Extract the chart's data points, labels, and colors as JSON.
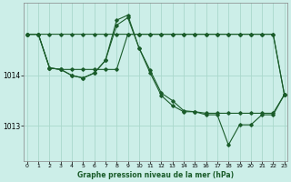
{
  "title": "Graphe pression niveau de la mer (hPa)",
  "bg_color": "#cceee8",
  "grid_color": "#aad8cc",
  "line_color": "#1a5c2a",
  "xlim_min": -0.3,
  "xlim_max": 23.3,
  "ylim_min": 1012.3,
  "ylim_max": 1015.45,
  "yticks": [
    1013,
    1014
  ],
  "xticks": [
    0,
    1,
    2,
    3,
    4,
    5,
    6,
    7,
    8,
    9,
    10,
    11,
    12,
    13,
    14,
    15,
    16,
    17,
    18,
    19,
    20,
    21,
    22,
    23
  ],
  "series": [
    {
      "x": [
        0,
        1,
        2,
        3,
        4,
        5,
        6,
        7,
        8,
        9,
        10,
        11,
        12,
        13,
        14,
        15,
        16,
        17,
        18,
        19,
        20,
        21,
        22,
        23
      ],
      "y": [
        1014.82,
        1014.82,
        1014.82,
        1014.82,
        1014.82,
        1014.82,
        1014.82,
        1014.82,
        1014.82,
        1014.82,
        1014.82,
        1014.82,
        1014.82,
        1014.82,
        1014.82,
        1014.82,
        1014.82,
        1014.82,
        1014.82,
        1014.82,
        1014.82,
        1014.82,
        1014.82,
        1013.62
      ]
    },
    {
      "x": [
        0,
        1,
        2,
        3,
        4,
        5,
        6,
        7,
        8,
        9,
        10,
        11,
        12,
        13,
        14,
        15,
        16,
        17,
        18,
        19,
        20,
        21,
        22,
        23
      ],
      "y": [
        1014.82,
        1014.82,
        1014.15,
        1014.12,
        1014.12,
        1014.12,
        1014.12,
        1014.12,
        1014.12,
        1014.82,
        1014.82,
        1014.82,
        1014.82,
        1014.82,
        1014.82,
        1014.82,
        1014.82,
        1014.82,
        1014.82,
        1014.82,
        1014.82,
        1014.82,
        1014.82,
        1013.62
      ]
    },
    {
      "x": [
        0,
        1,
        2,
        3,
        4,
        5,
        6,
        7,
        8,
        9,
        10,
        11,
        12,
        13,
        14,
        15,
        16,
        17,
        18,
        19,
        20,
        21,
        22,
        23
      ],
      "y": [
        1014.82,
        1014.82,
        1014.15,
        1014.12,
        1014.0,
        1013.95,
        1014.05,
        1014.3,
        1015.0,
        1015.15,
        1014.55,
        1014.1,
        1013.65,
        1013.5,
        1013.3,
        1013.28,
        1013.25,
        1013.25,
        1013.25,
        1013.25,
        1013.25,
        1013.25,
        1013.25,
        1013.62
      ]
    },
    {
      "x": [
        0,
        1,
        2,
        3,
        4,
        5,
        6,
        7,
        8,
        9,
        10,
        11,
        12,
        13,
        14,
        15,
        16,
        17,
        18,
        19,
        20,
        21,
        22,
        23
      ],
      "y": [
        1014.82,
        1014.82,
        1014.15,
        1014.12,
        1014.0,
        1013.95,
        1014.05,
        1014.3,
        1015.1,
        1015.2,
        1014.55,
        1014.05,
        1013.6,
        1013.4,
        1013.28,
        1013.28,
        1013.22,
        1013.22,
        1012.62,
        1013.02,
        1013.02,
        1013.22,
        1013.22,
        1013.62
      ]
    }
  ]
}
